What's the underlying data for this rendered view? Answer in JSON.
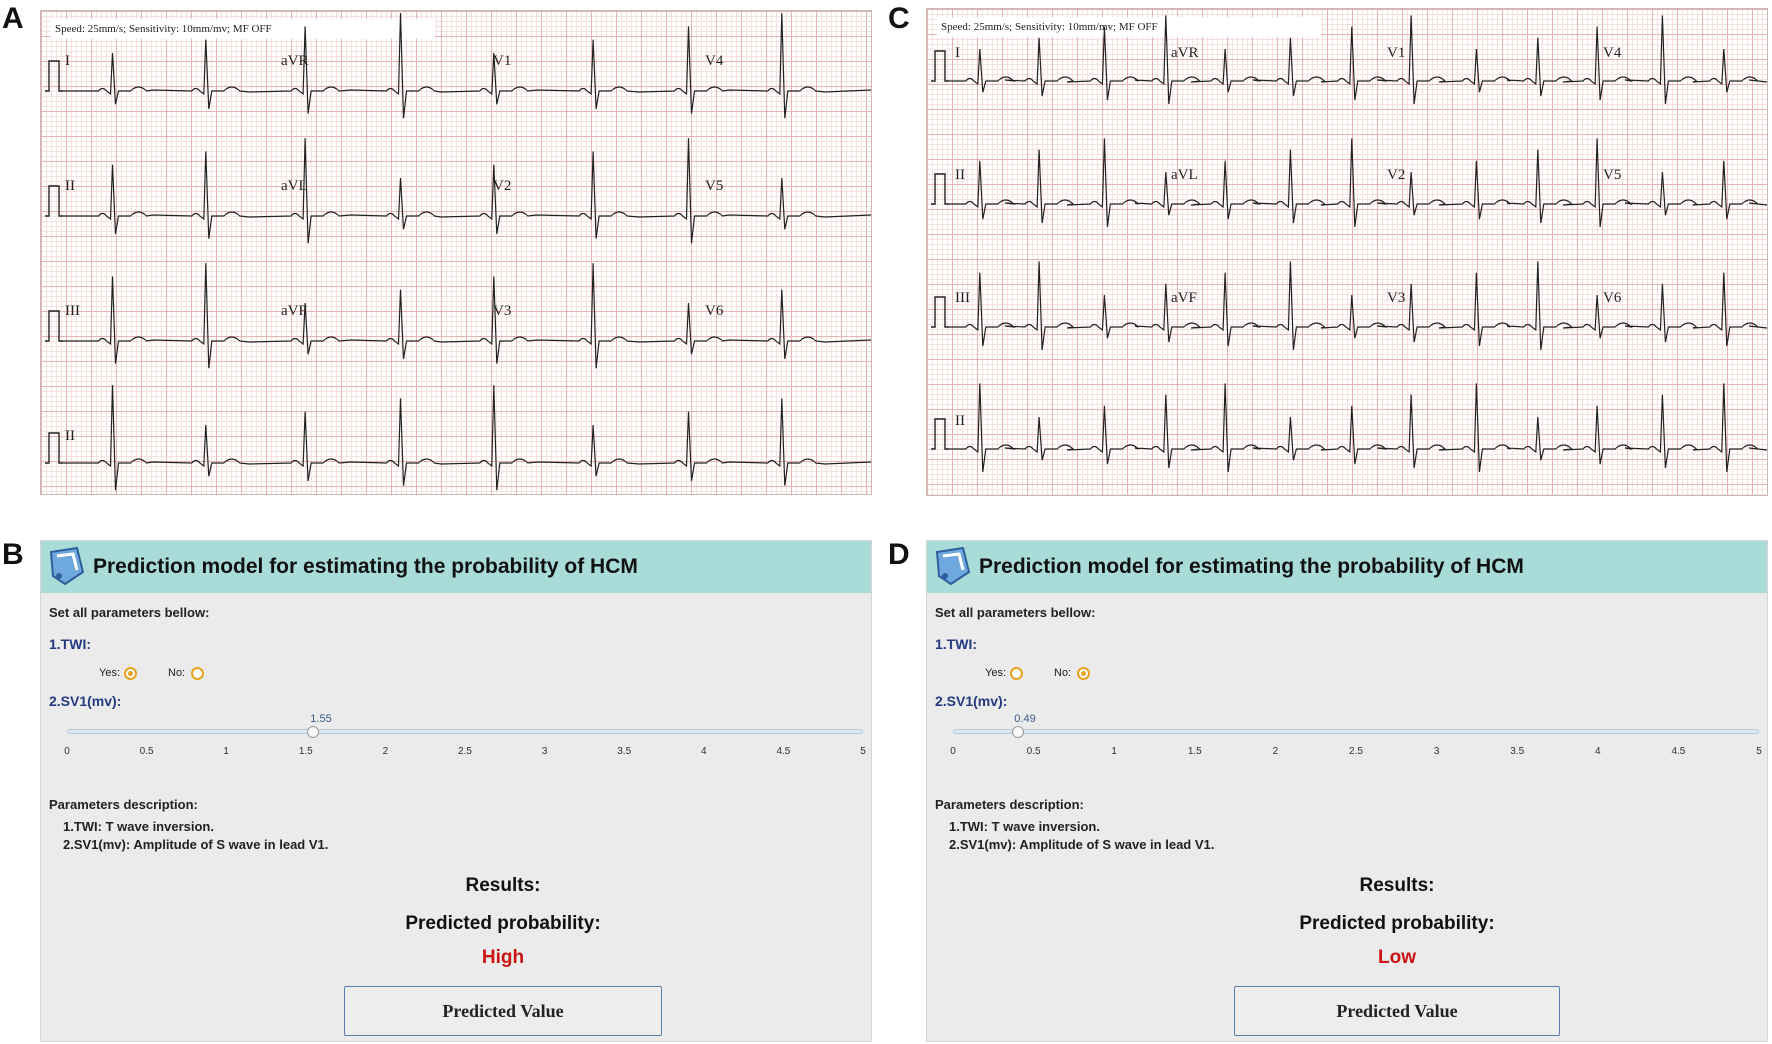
{
  "panels": {
    "a": "A",
    "b": "B",
    "c": "C",
    "d": "D"
  },
  "ecg_a": {
    "header": "Speed: 25mm/s; Sensitivity: 10mm/mv; MF OFF",
    "leads": [
      "I",
      "aVR",
      "V1",
      "V4",
      "II",
      "aVL",
      "V2",
      "V5",
      "III",
      "aVF",
      "V3",
      "V6",
      "II"
    ]
  },
  "ecg_c": {
    "header": "Speed: 25mm/s; Sensitivity: 10mm/mv; MF OFF",
    "leads": [
      "I",
      "aVR",
      "V1",
      "V4",
      "II",
      "aVL",
      "V2",
      "V5",
      "III",
      "aVF",
      "V3",
      "V6",
      "II"
    ]
  },
  "calc_b": {
    "title": "Prediction model for estimating the probability of HCM",
    "set_params": "Set all parameters bellow:",
    "twi_label": "1.TWI:",
    "yes_label": "Yes:",
    "no_label": "No:",
    "twi_selected": "Yes",
    "sv1_label": "2.SV1(mv):",
    "sv1_value": "1.55",
    "sv1_numeric": 1.55,
    "slider_ticks": [
      "0",
      "0.5",
      "1",
      "1.5",
      "2",
      "2.5",
      "3",
      "3.5",
      "4",
      "4.5",
      "5"
    ],
    "desc_title": "Parameters description:",
    "desc_1": "1.TWI: T wave inversion.",
    "desc_2": "2.SV1(mv): Amplitude of S wave in lead V1.",
    "results_label": "Results:",
    "pred_label": "Predicted probability:",
    "pred_value": "High",
    "button_label": "Predicted Value"
  },
  "calc_d": {
    "title": "Prediction model for estimating the probability of HCM",
    "set_params": "Set all parameters bellow:",
    "twi_label": "1.TWI:",
    "yes_label": "Yes:",
    "no_label": "No:",
    "twi_selected": "No",
    "sv1_label": "2.SV1(mv):",
    "sv1_value": "0.49",
    "sv1_numeric": 0.49,
    "slider_ticks": [
      "0",
      "0.5",
      "1",
      "1.5",
      "2",
      "2.5",
      "3",
      "3.5",
      "4",
      "4.5",
      "5"
    ],
    "desc_title": "Parameters description:",
    "desc_1": "1.TWI: T wave inversion.",
    "desc_2": "2.SV1(mv): Amplitude of S wave in lead V1.",
    "results_label": "Results:",
    "pred_label": "Predicted probability:",
    "pred_value": "Low",
    "button_label": "Predicted Value"
  },
  "colors": {
    "title_bar": "#a9dcd9",
    "result_red": "#cc1111",
    "radio_orange": "#e8a21b",
    "label_blue": "#233a80"
  }
}
